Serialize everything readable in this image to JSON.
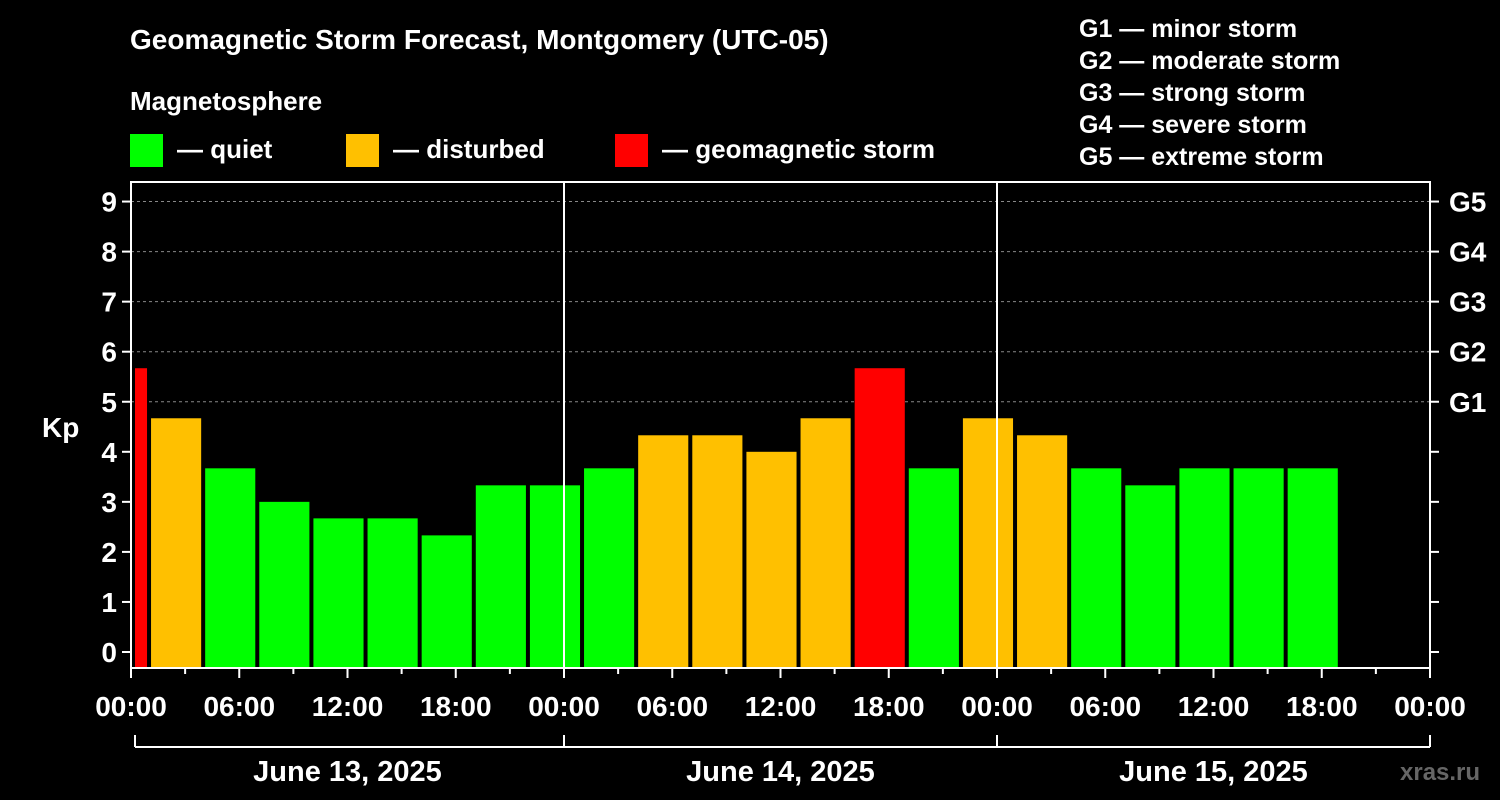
{
  "chart_data": {
    "type": "bar",
    "title": "Geomagnetic Storm Forecast, Montgomery (UTC-05)",
    "magnetosphere_label": "Magnetosphere",
    "legend": [
      {
        "label": "— quiet",
        "color": "#00ff00"
      },
      {
        "label": "— disturbed",
        "color": "#ffc000"
      },
      {
        "label": "— geomagnetic storm",
        "color": "#ff0000"
      }
    ],
    "storm_scale": [
      "G1 — minor storm",
      "G2 — moderate storm",
      "G3 — strong storm",
      "G4 — severe storm",
      "G5 — extreme storm"
    ],
    "ylabel": "Kp",
    "ylim": [
      -0.3,
      9.4
    ],
    "yticks": [
      "0",
      "1",
      "2",
      "3",
      "4",
      "5",
      "6",
      "7",
      "8",
      "9"
    ],
    "right_ticks": [
      {
        "value": 5,
        "label": "G1"
      },
      {
        "value": 6,
        "label": "G2"
      },
      {
        "value": 7,
        "label": "G3"
      },
      {
        "value": 8,
        "label": "G4"
      },
      {
        "value": 9,
        "label": "G5"
      }
    ],
    "x_range_hours": [
      0,
      72
    ],
    "xtick_labels": [
      "00:00",
      "06:00",
      "12:00",
      "18:00",
      "00:00",
      "06:00",
      "12:00",
      "18:00",
      "00:00",
      "06:00",
      "12:00",
      "18:00",
      "00:00"
    ],
    "days": [
      "June 13, 2025",
      "June 14, 2025",
      "June 15, 2025"
    ],
    "bars": [
      {
        "start": 0,
        "end": 1,
        "value": 5.67,
        "level": "storm"
      },
      {
        "start": 1,
        "end": 4,
        "value": 4.67,
        "level": "disturbed"
      },
      {
        "start": 4,
        "end": 7,
        "value": 3.67,
        "level": "quiet"
      },
      {
        "start": 7,
        "end": 10,
        "value": 3.0,
        "level": "quiet"
      },
      {
        "start": 10,
        "end": 13,
        "value": 2.67,
        "level": "quiet"
      },
      {
        "start": 13,
        "end": 16,
        "value": 2.67,
        "level": "quiet"
      },
      {
        "start": 16,
        "end": 19,
        "value": 2.33,
        "level": "quiet"
      },
      {
        "start": 19,
        "end": 22,
        "value": 3.33,
        "level": "quiet"
      },
      {
        "start": 22,
        "end": 25,
        "value": 3.33,
        "level": "quiet"
      },
      {
        "start": 25,
        "end": 28,
        "value": 3.67,
        "level": "quiet"
      },
      {
        "start": 28,
        "end": 31,
        "value": 4.33,
        "level": "disturbed"
      },
      {
        "start": 31,
        "end": 34,
        "value": 4.33,
        "level": "disturbed"
      },
      {
        "start": 34,
        "end": 37,
        "value": 4.0,
        "level": "disturbed"
      },
      {
        "start": 37,
        "end": 40,
        "value": 4.67,
        "level": "disturbed"
      },
      {
        "start": 40,
        "end": 43,
        "value": 5.67,
        "level": "storm"
      },
      {
        "start": 43,
        "end": 46,
        "value": 3.67,
        "level": "quiet"
      },
      {
        "start": 46,
        "end": 49,
        "value": 4.67,
        "level": "disturbed"
      },
      {
        "start": 49,
        "end": 52,
        "value": 4.33,
        "level": "disturbed"
      },
      {
        "start": 52,
        "end": 55,
        "value": 3.67,
        "level": "quiet"
      },
      {
        "start": 55,
        "end": 58,
        "value": 3.33,
        "level": "quiet"
      },
      {
        "start": 58,
        "end": 61,
        "value": 3.67,
        "level": "quiet"
      },
      {
        "start": 61,
        "end": 64,
        "value": 3.67,
        "level": "quiet"
      },
      {
        "start": 64,
        "end": 67,
        "value": 3.67,
        "level": "quiet"
      }
    ],
    "colors": {
      "quiet": "#00ff00",
      "disturbed": "#ffc000",
      "storm": "#ff0000",
      "grid": "#888888",
      "axis": "#ffffff"
    }
  },
  "watermark": "xras.ru"
}
